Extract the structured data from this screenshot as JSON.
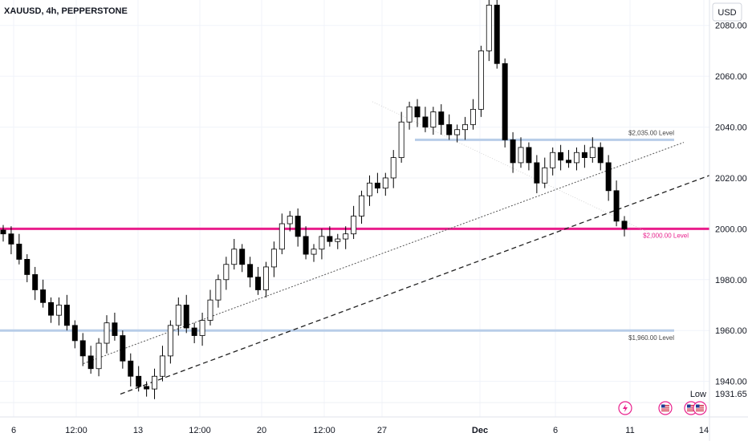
{
  "header": {
    "title": "XAUUSD, 4h, PEPPERSTONE"
  },
  "price_axis": {
    "currency": "USD",
    "ticks": [
      "2080.00",
      "2060.00",
      "2040.00",
      "2020.00",
      "2000.00",
      "1980.00",
      "1960.00",
      "1940.00"
    ],
    "low_label": "Low",
    "low_value": "1931.65"
  },
  "time_axis": {
    "ticks": [
      "6",
      "12:00",
      "13",
      "12:00",
      "20",
      "12:00",
      "27",
      "Dec",
      "6",
      "11",
      "14"
    ]
  },
  "levels": [
    {
      "label": "$2,035.00 Level",
      "value": 2035,
      "color": "#b8cde8"
    },
    {
      "label": "$2,000.00 Level",
      "value": 2000,
      "color": "#e91e8c"
    },
    {
      "label": "$1,960.00 Level",
      "value": 1960,
      "color": "#b8cde8"
    }
  ],
  "colors": {
    "up": "#ffffff",
    "down": "#000000",
    "wick": "#000000",
    "accent": "#e91e8c",
    "grid": "#f0f3fa"
  },
  "icons": [
    "lightning-icon",
    "us-flag-icon",
    "us-flag-icon",
    "us-flag-icon"
  ],
  "chart_data": {
    "type": "candlestick",
    "title": "XAUUSD, 4h, PEPPERSTONE",
    "ylabel": "USD",
    "ylim": [
      1926,
      2090
    ],
    "y_ticks": [
      1940,
      1960,
      1980,
      2000,
      2020,
      2040,
      2060,
      2080
    ],
    "x_ticks": [
      "6",
      "12:00",
      "13",
      "12:00",
      "20",
      "12:00",
      "27",
      "Dec",
      "6",
      "11",
      "14"
    ],
    "horizontal_levels": [
      2035,
      2000,
      1960
    ],
    "trendlines": [
      {
        "style": "dotted",
        "from": [
          1947,
          1947
        ],
        "to": [
          2034,
          2034
        ]
      },
      {
        "style": "dashed",
        "from": [
          1935,
          1935
        ],
        "to": [
          2021,
          2021
        ]
      }
    ],
    "close_path": [
      1998,
      1994,
      1988,
      1982,
      1976,
      1971,
      1966,
      1970,
      1962,
      1956,
      1950,
      1945,
      1955,
      1963,
      1958,
      1948,
      1942,
      1938,
      1937,
      1942,
      1950,
      1962,
      1970,
      1961,
      1958,
      1964,
      1972,
      1980,
      1986,
      1992,
      1986,
      1981,
      1976,
      1985,
      1992,
      2002,
      2005,
      1997,
      1990,
      1992,
      1997,
      1995,
      1996,
      1998,
      2005,
      2013,
      2018,
      2016,
      2020,
      2028,
      2042,
      2048,
      2044,
      2040,
      2046,
      2041,
      2037,
      2039,
      2041,
      2047,
      2070,
      2088,
      2065,
      2035,
      2026,
      2032,
      2026,
      2018,
      2024,
      2030,
      2027,
      2026,
      2030,
      2028,
      2032,
      2026,
      2015,
      2003,
      2000
    ],
    "last_value": 2000,
    "low": 1931.65
  }
}
